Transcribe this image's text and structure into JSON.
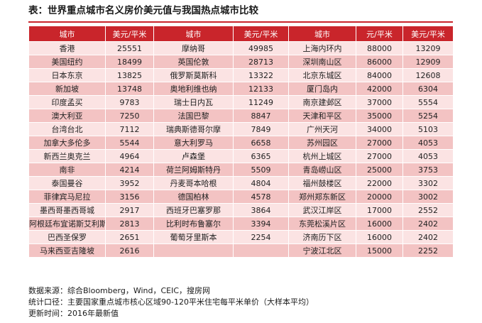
{
  "title": "表：世界重点城市名义房价美元值与我国热点城市比较",
  "headers": [
    "城市",
    "美元/平米",
    "城市",
    "美元/平米",
    "城市",
    "元/平米",
    "美元/平米"
  ],
  "rows": [
    [
      "香港",
      "25551",
      "摩纳哥",
      "49985",
      "上海内环内",
      "88000",
      "13209"
    ],
    [
      "美国纽约",
      "18499",
      "英国伦敦",
      "28713",
      "深圳南山区",
      "86000",
      "12909"
    ],
    [
      "日本东京",
      "13825",
      "俄罗斯莫斯科",
      "13322",
      "北京东城区",
      "84000",
      "12608"
    ],
    [
      "新加坡",
      "13748",
      "奥地利维也纳",
      "12133",
      "厦门岛内",
      "42000",
      "6304"
    ],
    [
      "印度孟买",
      "9783",
      "瑞士日内瓦",
      "11249",
      "南京建邺区",
      "37000",
      "5554"
    ],
    [
      "澳大利亚",
      "7250",
      "法国巴黎",
      "8847",
      "天津和平区",
      "35000",
      "5254"
    ],
    [
      "台湾台北",
      "7112",
      "瑞典斯德哥尔摩",
      "7849",
      "广州天河",
      "34000",
      "5103"
    ],
    [
      "加拿大多伦多",
      "5544",
      "意大利罗马",
      "6658",
      "苏州园区",
      "27000",
      "4053"
    ],
    [
      "新西兰奥克兰",
      "4964",
      "卢森堡",
      "6365",
      "杭州上城区",
      "27000",
      "4053"
    ],
    [
      "南非",
      "4214",
      "荷兰阿姆斯特丹",
      "5509",
      "青岛崂山区",
      "25000",
      "3753"
    ],
    [
      "泰国曼谷",
      "3952",
      "丹麦哥本哈根",
      "4804",
      "福州鼓楼区",
      "22000",
      "3302"
    ],
    [
      "菲律宾马尼拉",
      "3156",
      "德国柏林",
      "4578",
      "郑州郑东新区",
      "20000",
      "3002"
    ],
    [
      "墨西哥墨西哥城",
      "2917",
      "西班牙巴塞罗那",
      "3864",
      "武汉江岸区",
      "17000",
      "2552"
    ],
    [
      "阿根廷布宜诺斯艾利斯",
      "2813",
      "比利时布鲁塞尔",
      "3394",
      "东莞松溪片区",
      "16000",
      "2402"
    ],
    [
      "巴西圣保罗",
      "2651",
      "葡萄牙里斯本",
      "2254",
      "济南历下区",
      "16000",
      "2402"
    ],
    [
      "马来西亚吉隆坡",
      "2616",
      "",
      "",
      "宁波江北区",
      "15000",
      "2252"
    ]
  ],
  "notes": [
    "数据来源：综合Bloomberg，Wind，CEIC，搜房网",
    "统计口径：主要国家重点城市核心区域90-120平米住宅每平米单价（大样本平均）",
    "更新时间：2016年最新值"
  ],
  "colors": {
    "header": "#c9252b",
    "row_light": "#fbe3e3",
    "row_dark": "#f3c3c3"
  }
}
